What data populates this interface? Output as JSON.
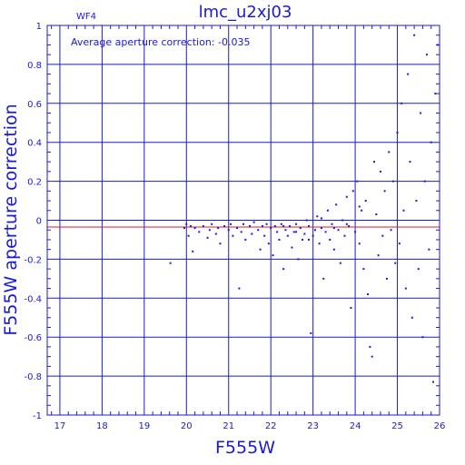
{
  "chart_data": {
    "type": "scatter",
    "title": "lmc_u2xj03",
    "chip_label": "WF4",
    "xlabel": "F555W",
    "ylabel": "F555W aperture correction",
    "annotation": "Average aperture correction: -0.035",
    "average": -0.035,
    "xlim": [
      16.7,
      26
    ],
    "ylim": [
      -1,
      1
    ],
    "xticks": [
      "17",
      "18",
      "19",
      "20",
      "21",
      "22",
      "23",
      "24",
      "25",
      "26"
    ],
    "yticks": [
      "1",
      "0.8",
      "0.6",
      "0.4",
      "0.2",
      "0",
      "-0.2",
      "-0.4",
      "-0.6",
      "-0.8",
      "-1"
    ],
    "grid": true,
    "colors": {
      "axis": "#1a1ad6",
      "points": "#1a1ad6",
      "average_line": "#d42020"
    },
    "series": [
      {
        "points": [
          [
            19.62,
            -0.22
          ],
          [
            19.95,
            -0.04
          ],
          [
            20.0,
            -0.02
          ],
          [
            20.05,
            -0.08
          ],
          [
            20.1,
            -0.03
          ],
          [
            20.15,
            -0.16
          ],
          [
            20.2,
            -0.04
          ],
          [
            20.3,
            -0.06
          ],
          [
            20.4,
            -0.03
          ],
          [
            20.5,
            -0.09
          ],
          [
            20.55,
            -0.05
          ],
          [
            20.6,
            -0.02
          ],
          [
            20.7,
            -0.07
          ],
          [
            20.75,
            -0.04
          ],
          [
            20.8,
            -0.12
          ],
          [
            20.9,
            -0.03
          ],
          [
            21.0,
            -0.05
          ],
          [
            21.05,
            -0.02
          ],
          [
            21.1,
            -0.08
          ],
          [
            21.2,
            -0.04
          ],
          [
            21.25,
            -0.35
          ],
          [
            21.3,
            -0.06
          ],
          [
            21.35,
            -0.02
          ],
          [
            21.4,
            -0.1
          ],
          [
            21.5,
            -0.03
          ],
          [
            21.55,
            -0.07
          ],
          [
            21.6,
            -0.01
          ],
          [
            21.7,
            -0.05
          ],
          [
            21.75,
            -0.15
          ],
          [
            21.8,
            -0.03
          ],
          [
            21.85,
            -0.08
          ],
          [
            21.9,
            -0.02
          ],
          [
            21.95,
            -0.12
          ],
          [
            22.0,
            -0.04
          ],
          [
            22.05,
            -0.18
          ],
          [
            22.1,
            -0.03
          ],
          [
            22.15,
            -0.06
          ],
          [
            22.2,
            -0.1
          ],
          [
            22.25,
            -0.02
          ],
          [
            22.3,
            -0.25
          ],
          [
            22.35,
            -0.05
          ],
          [
            22.4,
            -0.08
          ],
          [
            22.45,
            -0.03
          ],
          [
            22.5,
            -0.14
          ],
          [
            22.55,
            -0.06
          ],
          [
            22.6,
            -0.02
          ],
          [
            22.65,
            -0.2
          ],
          [
            22.7,
            -0.04
          ],
          [
            22.75,
            -0.1
          ],
          [
            22.8,
            -0.07
          ],
          [
            22.85,
            0.0
          ],
          [
            22.9,
            -0.03
          ],
          [
            22.95,
            -0.58
          ],
          [
            23.0,
            -0.08
          ],
          [
            23.05,
            -0.05
          ],
          [
            23.1,
            0.02
          ],
          [
            23.15,
            -0.12
          ],
          [
            23.2,
            -0.04
          ],
          [
            23.25,
            -0.3
          ],
          [
            23.3,
            -0.06
          ],
          [
            23.35,
            0.05
          ],
          [
            23.4,
            -0.1
          ],
          [
            23.45,
            -0.02
          ],
          [
            23.5,
            -0.15
          ],
          [
            23.55,
            0.08
          ],
          [
            23.6,
            -0.05
          ],
          [
            23.65,
            -0.22
          ],
          [
            23.7,
            0.0
          ],
          [
            23.75,
            -0.08
          ],
          [
            23.8,
            0.12
          ],
          [
            23.85,
            -0.03
          ],
          [
            23.9,
            -0.45
          ],
          [
            23.95,
            0.15
          ],
          [
            24.0,
            -0.06
          ],
          [
            24.05,
            0.2
          ],
          [
            24.1,
            -0.12
          ],
          [
            24.15,
            0.05
          ],
          [
            24.2,
            -0.25
          ],
          [
            24.25,
            0.1
          ],
          [
            24.3,
            -0.38
          ],
          [
            24.35,
            -0.65
          ],
          [
            24.4,
            -0.7
          ],
          [
            24.45,
            0.3
          ],
          [
            24.5,
            0.03
          ],
          [
            24.55,
            -0.18
          ],
          [
            24.6,
            0.25
          ],
          [
            24.65,
            -0.08
          ],
          [
            24.7,
            0.15
          ],
          [
            24.75,
            -0.3
          ],
          [
            24.8,
            0.35
          ],
          [
            24.85,
            -0.05
          ],
          [
            24.9,
            0.2
          ],
          [
            24.95,
            -0.22
          ],
          [
            25.0,
            0.45
          ],
          [
            25.05,
            -0.12
          ],
          [
            25.1,
            0.6
          ],
          [
            25.15,
            0.05
          ],
          [
            25.2,
            -0.35
          ],
          [
            25.25,
            0.75
          ],
          [
            25.3,
            0.3
          ],
          [
            25.35,
            -0.5
          ],
          [
            25.4,
            0.95
          ],
          [
            25.45,
            0.1
          ],
          [
            25.5,
            -0.25
          ],
          [
            25.55,
            0.55
          ],
          [
            25.6,
            -0.6
          ],
          [
            25.65,
            0.2
          ],
          [
            25.7,
            0.85
          ],
          [
            25.75,
            -0.15
          ],
          [
            25.8,
            0.4
          ],
          [
            25.85,
            -0.83
          ],
          [
            25.9,
            0.65
          ],
          [
            25.95,
            0.9
          ],
          [
            22.3,
            -0.03
          ],
          [
            22.6,
            -0.06
          ],
          [
            22.9,
            -0.1
          ],
          [
            23.2,
            0.01
          ],
          [
            23.5,
            -0.04
          ],
          [
            23.8,
            -0.02
          ],
          [
            24.1,
            0.07
          ]
        ]
      }
    ]
  }
}
